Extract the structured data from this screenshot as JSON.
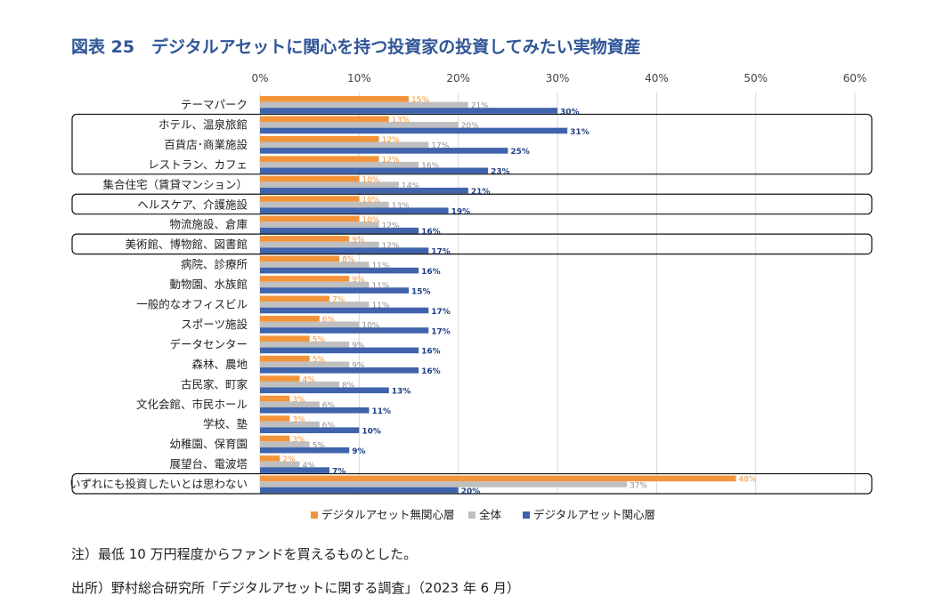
{
  "title": "図表 25　デジタルアセットに関心を持つ投資家の投資してみたい実物資産",
  "note": "注）最低 10 万円程度からファンドを買えるものとした。",
  "source": "出所）野村総合研究所「デジタルアセットに関する調査」（2023 年 6 月）",
  "colors": {
    "無関心層": "#f4943a",
    "全体": "#bfbfbf",
    "関心層": "#3f63ac",
    "関心層_label": "#1f3f86"
  },
  "chart_data": {
    "type": "bar",
    "orientation": "horizontal",
    "xlim": [
      0,
      60
    ],
    "x_ticks": [
      "0%",
      "10%",
      "20%",
      "30%",
      "40%",
      "50%",
      "60%"
    ],
    "grid": true,
    "legend_position": "bottom",
    "categories": [
      "テーマパーク",
      "ホテル、温泉旅館",
      "百貨店･商業施設",
      "レストラン、カフェ",
      "集合住宅（賃貸マンション）",
      "ヘルスケア、介護施設",
      "物流施設、倉庫",
      "美術館、博物館、図書館",
      "病院、診療所",
      "動物園、水族館",
      "一般的なオフィスビル",
      "スポーツ施設",
      "データセンター",
      "森林、農地",
      "古民家、町家",
      "文化会館、市民ホール",
      "学校、塾",
      "幼稚園、保育園",
      "展望台、電波塔",
      "いずれにも投資したいとは思わない"
    ],
    "series": [
      {
        "name": "デジタルアセット無関心層",
        "color": "#f4943a",
        "values": [
          15,
          13,
          12,
          12,
          10,
          10,
          10,
          9,
          8,
          9,
          7,
          6,
          5,
          5,
          4,
          3,
          3,
          3,
          2,
          48
        ]
      },
      {
        "name": "全体",
        "color": "#bfbfbf",
        "values": [
          21,
          20,
          17,
          16,
          14,
          13,
          12,
          12,
          11,
          11,
          11,
          10,
          9,
          9,
          8,
          6,
          6,
          5,
          4,
          37
        ]
      },
      {
        "name": "デジタルアセット関心層",
        "color": "#3f63ac",
        "values": [
          30,
          31,
          25,
          23,
          21,
          19,
          16,
          17,
          16,
          15,
          17,
          17,
          16,
          16,
          13,
          11,
          10,
          9,
          7,
          20
        ]
      }
    ],
    "highlight_groups": [
      [
        1,
        3
      ],
      [
        5,
        5
      ],
      [
        7,
        7
      ],
      [
        19,
        19
      ]
    ]
  }
}
